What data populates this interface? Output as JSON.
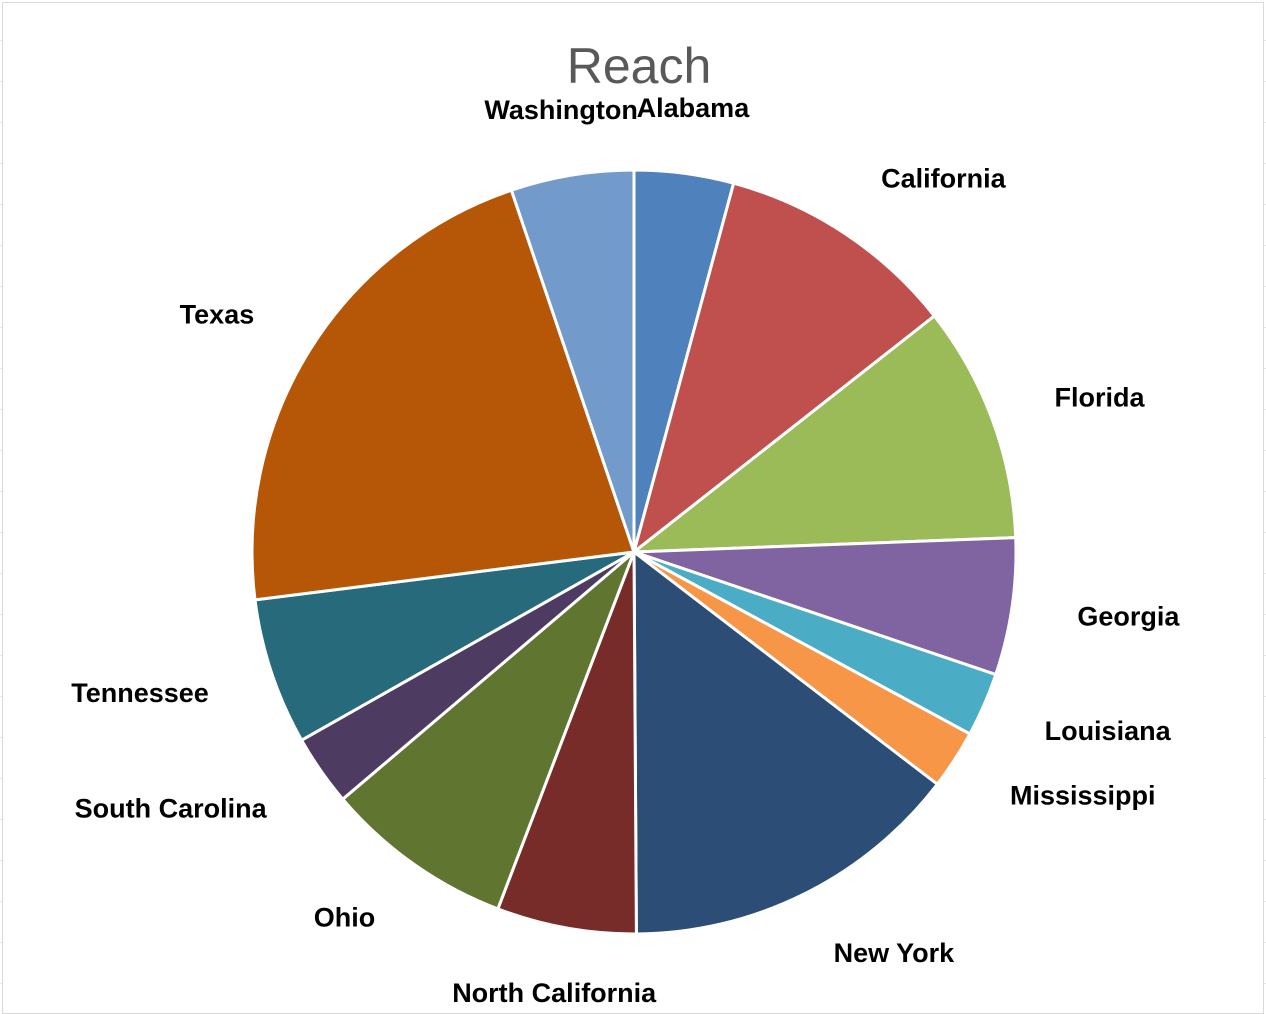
{
  "chart_data": {
    "type": "pie",
    "title": "Reach",
    "categories": [
      "Alabama",
      "California",
      "Florida",
      "Georgia",
      "Louisiana",
      "Mississippi",
      "New York",
      "North California",
      "Ohio",
      "South Carolina",
      "Tennessee",
      "Texas",
      "Washington"
    ],
    "values": [
      4.2,
      10.2,
      10.0,
      5.8,
      2.7,
      2.5,
      14.5,
      5.9,
      8.0,
      3.0,
      6.2,
      21.8,
      5.2
    ],
    "colors": [
      "#4F81BD",
      "#C0504D",
      "#9BBB59",
      "#8064A2",
      "#4BACC6",
      "#F79646",
      "#2C4D75",
      "#772C2A",
      "#5F7530",
      "#4D3B62",
      "#276A7C",
      "#B65708",
      "#729ACA"
    ],
    "legend": "none",
    "data_labels": "category-outside"
  }
}
